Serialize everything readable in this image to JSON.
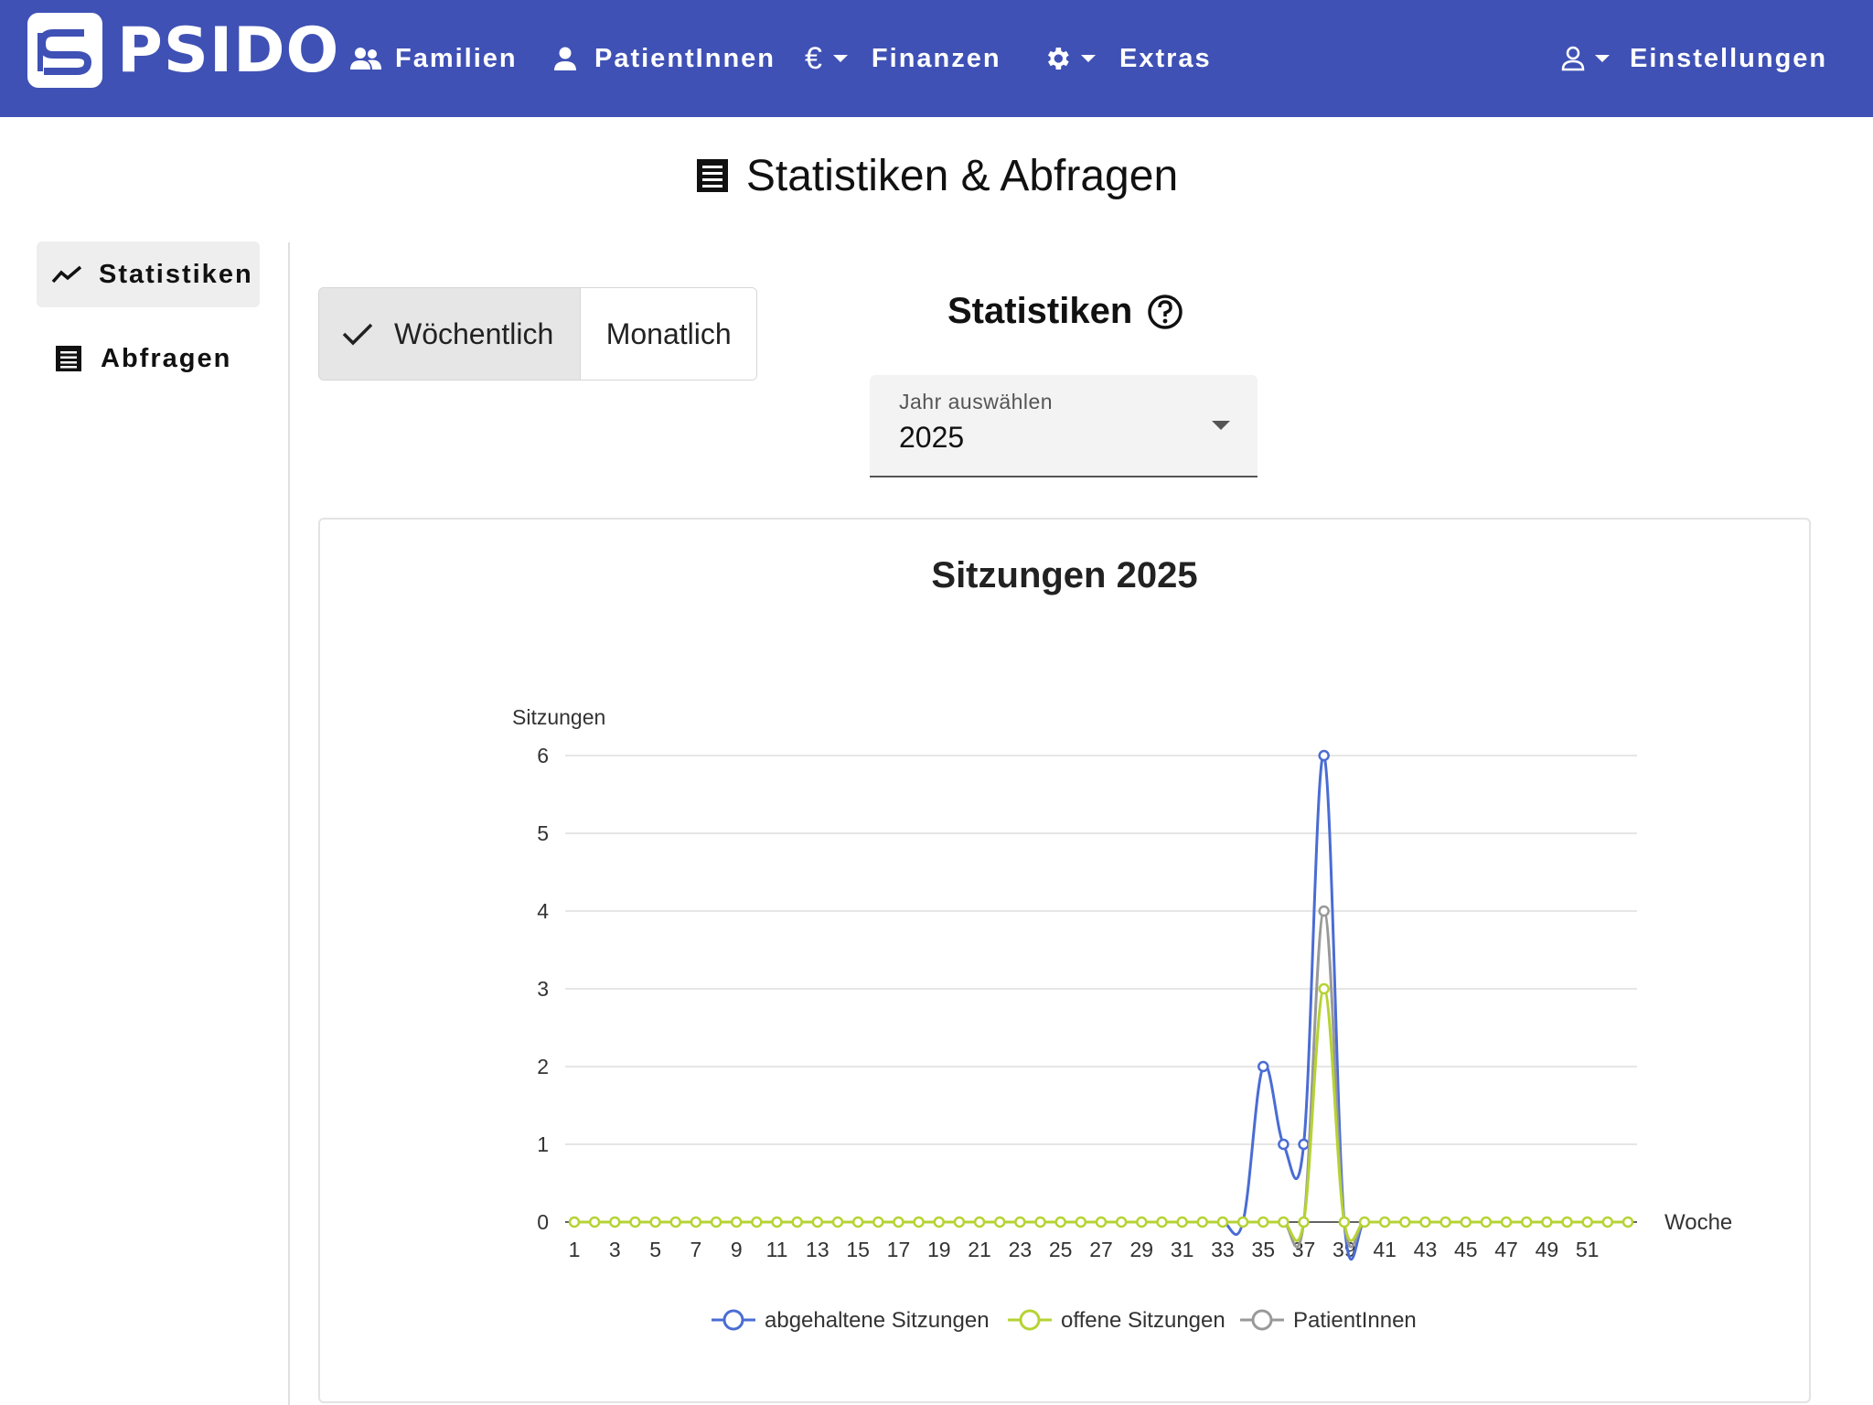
{
  "header": {
    "brand": "PSIDO",
    "nav": [
      {
        "label": "Familien",
        "icon": "people-icon"
      },
      {
        "label": "PatientInnen",
        "icon": "person-icon"
      },
      {
        "label": "Finanzen",
        "icon": "euro-icon"
      },
      {
        "label": "Extras",
        "icon": "gear-icon"
      }
    ],
    "settings_label": "Einstellungen"
  },
  "page": {
    "title": "Statistiken & Abfragen"
  },
  "sidebar": {
    "items": [
      {
        "label": "Statistiken",
        "icon": "trend-icon",
        "active": true
      },
      {
        "label": "Abfragen",
        "icon": "list-icon",
        "active": false
      }
    ]
  },
  "view_toggle": {
    "weekly": "Wöchentlich",
    "monthly": "Monatlich",
    "selected": "weekly"
  },
  "stats": {
    "heading": "Statistiken",
    "year_select": {
      "label": "Jahr auswählen",
      "value": "2025"
    }
  },
  "colors": {
    "primary": "#3f51b5",
    "series_held": "#4a6cd4",
    "series_open": "#b5d334",
    "series_patients": "#999999"
  },
  "chart_data": {
    "type": "line",
    "title": "Sitzungen 2025",
    "xlabel": "Woche",
    "ylabel": "Sitzungen",
    "ylim": [
      0,
      6
    ],
    "yticks": [
      0,
      1,
      2,
      3,
      4,
      5,
      6
    ],
    "x": [
      1,
      2,
      3,
      4,
      5,
      6,
      7,
      8,
      9,
      10,
      11,
      12,
      13,
      14,
      15,
      16,
      17,
      18,
      19,
      20,
      21,
      22,
      23,
      24,
      25,
      26,
      27,
      28,
      29,
      30,
      31,
      32,
      33,
      34,
      35,
      36,
      37,
      38,
      39,
      40,
      41,
      42,
      43,
      44,
      45,
      46,
      47,
      48,
      49,
      50,
      51,
      52,
      53
    ],
    "xtick_labels": [
      "1",
      "3",
      "5",
      "7",
      "9",
      "11",
      "13",
      "15",
      "17",
      "19",
      "21",
      "23",
      "25",
      "27",
      "29",
      "31",
      "33",
      "35",
      "37",
      "39",
      "41",
      "43",
      "45",
      "47",
      "49",
      "51"
    ],
    "series": [
      {
        "name": "abgehaltene Sitzungen",
        "values": [
          0,
          0,
          0,
          0,
          0,
          0,
          0,
          0,
          0,
          0,
          0,
          0,
          0,
          0,
          0,
          0,
          0,
          0,
          0,
          0,
          0,
          0,
          0,
          0,
          0,
          0,
          0,
          0,
          0,
          0,
          0,
          0,
          0,
          0,
          2,
          1,
          1,
          6,
          0,
          0,
          0,
          0,
          0,
          0,
          0,
          0,
          0,
          0,
          0,
          0,
          0,
          0,
          0
        ]
      },
      {
        "name": "offene Sitzungen",
        "values": [
          0,
          0,
          0,
          0,
          0,
          0,
          0,
          0,
          0,
          0,
          0,
          0,
          0,
          0,
          0,
          0,
          0,
          0,
          0,
          0,
          0,
          0,
          0,
          0,
          0,
          0,
          0,
          0,
          0,
          0,
          0,
          0,
          0,
          0,
          0,
          0,
          0,
          3,
          0,
          0,
          0,
          0,
          0,
          0,
          0,
          0,
          0,
          0,
          0,
          0,
          0,
          0,
          0
        ]
      },
      {
        "name": "PatientInnen",
        "values": [
          0,
          0,
          0,
          0,
          0,
          0,
          0,
          0,
          0,
          0,
          0,
          0,
          0,
          0,
          0,
          0,
          0,
          0,
          0,
          0,
          0,
          0,
          0,
          0,
          0,
          0,
          0,
          0,
          0,
          0,
          0,
          0,
          0,
          0,
          0,
          0,
          0,
          4,
          0,
          0,
          0,
          0,
          0,
          0,
          0,
          0,
          0,
          0,
          0,
          0,
          0,
          0,
          0
        ]
      }
    ],
    "legend_position": "bottom",
    "grid": true
  }
}
